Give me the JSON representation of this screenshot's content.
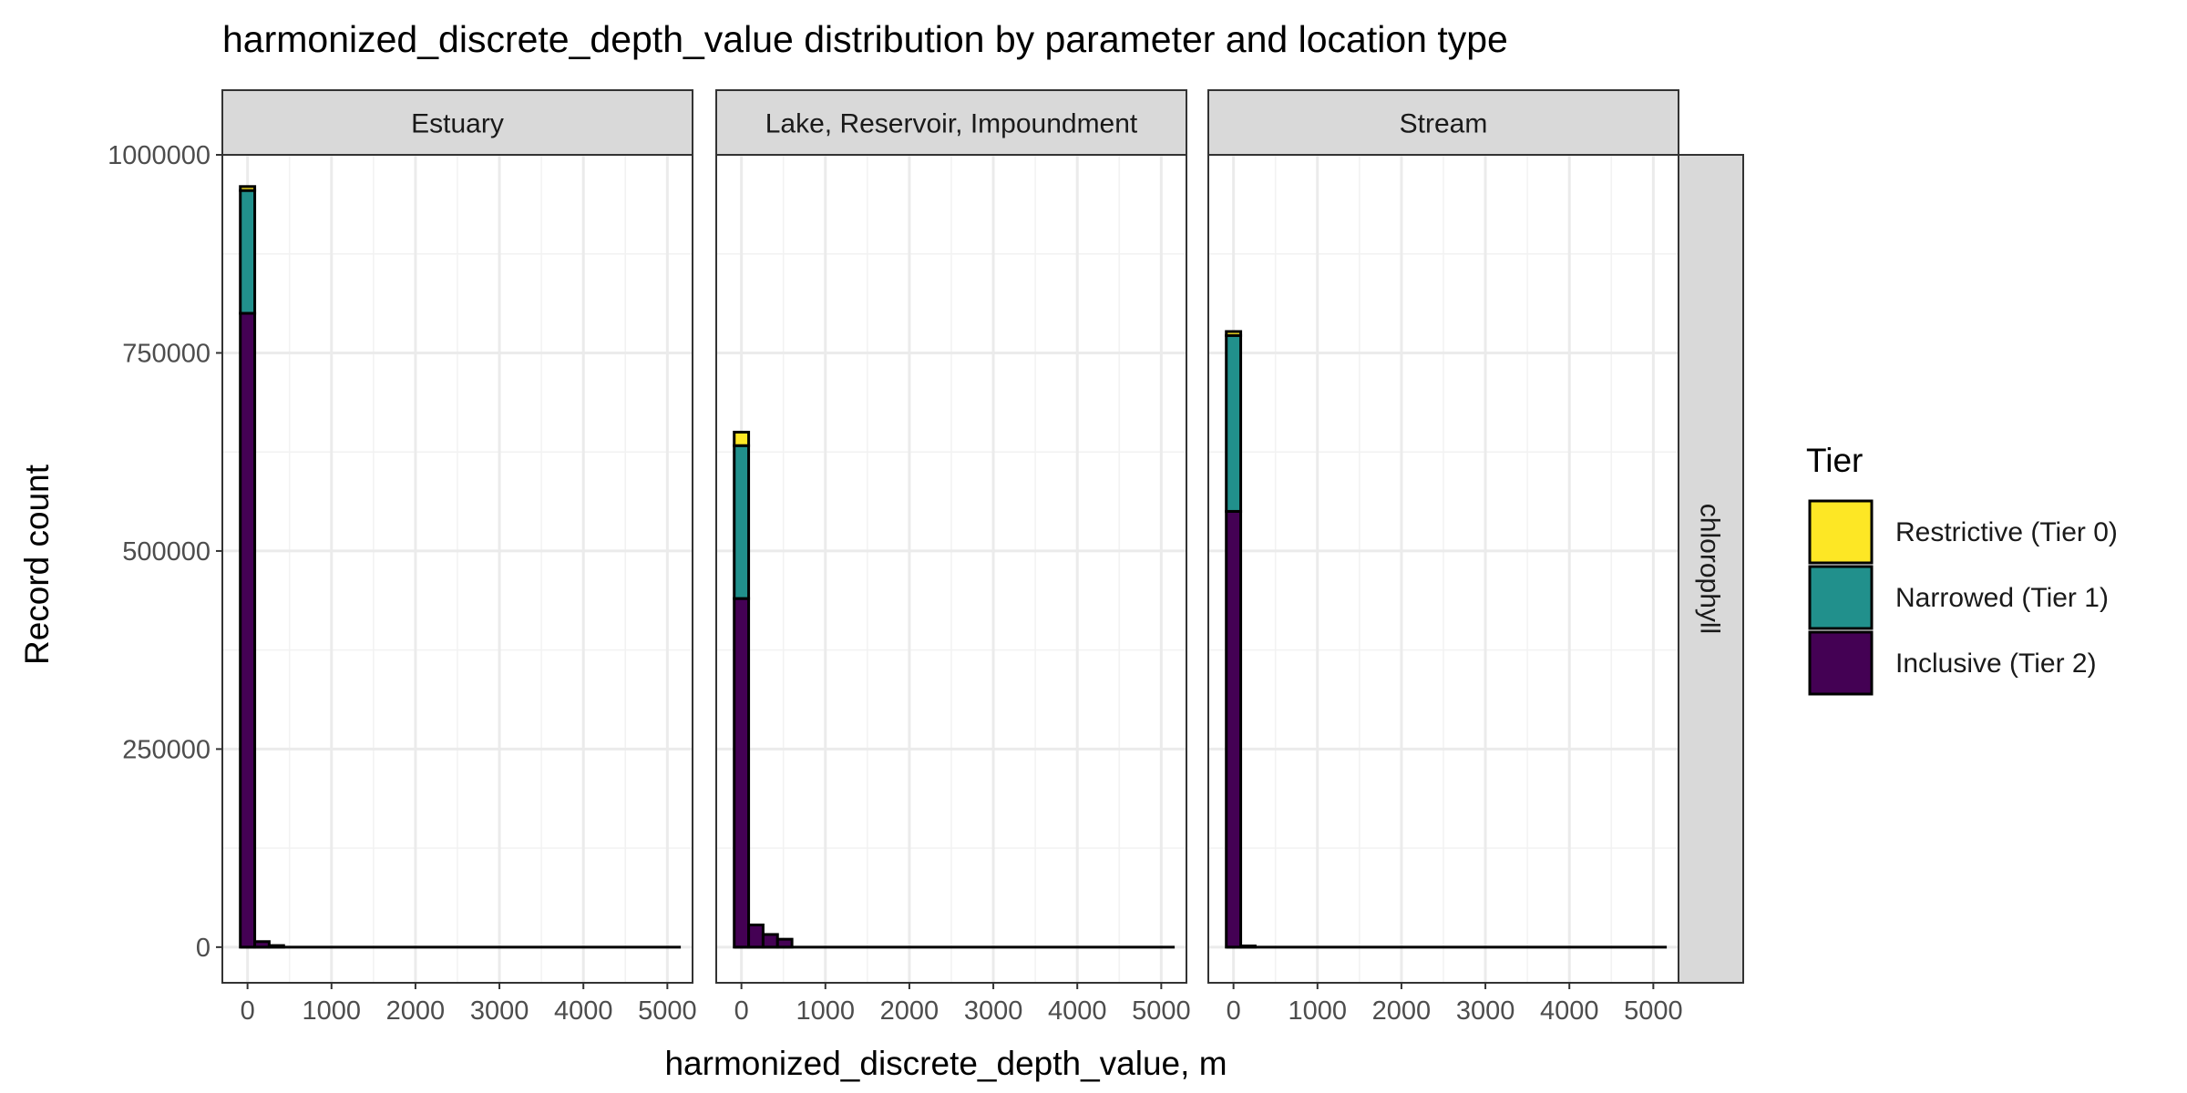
{
  "chart_data": {
    "type": "bar",
    "title": "harmonized_discrete_depth_value distribution by parameter and location type",
    "xlabel": "harmonized_discrete_depth_value, m",
    "ylabel": "Record count",
    "xlim": [
      -300,
      5300
    ],
    "ylim": [
      -45000,
      1000000
    ],
    "x_ticks": [
      0,
      1000,
      2000,
      3000,
      4000,
      5000
    ],
    "x_tick_labels": [
      "0",
      "1000",
      "2000",
      "3000",
      "4000",
      "5000"
    ],
    "y_ticks": [
      0,
      250000,
      500000,
      750000,
      1000000
    ],
    "y_tick_labels": [
      "0",
      "250000",
      "500000",
      "750000",
      "1000000"
    ],
    "grid": true,
    "bin_width": 172,
    "bin_range": [
      -86,
      5160
    ],
    "row_facet": "chlorophyll",
    "legend": {
      "title": "Tier",
      "position": "right",
      "entries": [
        {
          "label": "Restrictive (Tier 0)",
          "color": "#FDE725"
        },
        {
          "label": "Narrowed (Tier 1)",
          "color": "#21908C"
        },
        {
          "label": "Inclusive (Tier 2)",
          "color": "#440154"
        }
      ]
    },
    "facets": [
      {
        "name": "Estuary",
        "bars": [
          {
            "x": 0,
            "tier2": 800000,
            "tier1": 155000,
            "tier0": 5000
          },
          {
            "x": 172,
            "tier2": 7000,
            "tier1": 0,
            "tier0": 0
          },
          {
            "x": 344,
            "tier2": 2000,
            "tier1": 0,
            "tier0": 0
          }
        ]
      },
      {
        "name": "Lake, Reservoir, Impoundment",
        "bars": [
          {
            "x": 0,
            "tier2": 440000,
            "tier1": 193000,
            "tier0": 17000
          },
          {
            "x": 172,
            "tier2": 28000,
            "tier1": 0,
            "tier0": 0
          },
          {
            "x": 344,
            "tier2": 16000,
            "tier1": 0,
            "tier0": 0
          },
          {
            "x": 516,
            "tier2": 10000,
            "tier1": 0,
            "tier0": 0
          }
        ]
      },
      {
        "name": "Stream",
        "bars": [
          {
            "x": 0,
            "tier2": 550000,
            "tier1": 222000,
            "tier0": 5000
          },
          {
            "x": 172,
            "tier2": 1500,
            "tier1": 0,
            "tier0": 0
          }
        ]
      }
    ]
  }
}
